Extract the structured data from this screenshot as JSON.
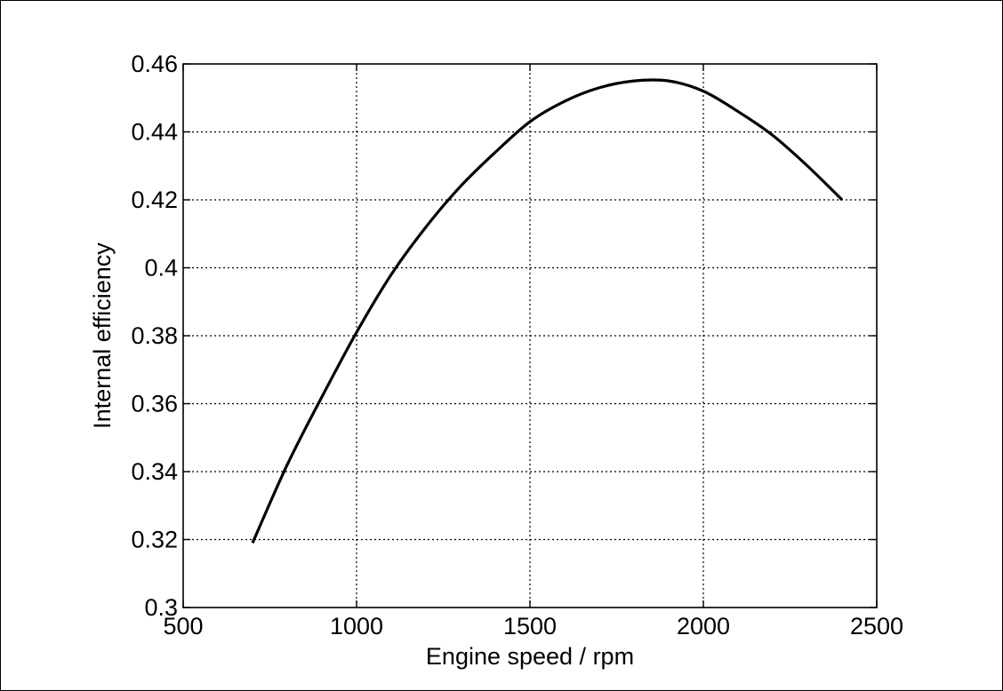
{
  "chart_data": {
    "type": "line",
    "title": "",
    "xlabel": "Engine speed / rpm",
    "ylabel": "Internal efficiency",
    "xlim": [
      500,
      2500
    ],
    "ylim": [
      0.3,
      0.46
    ],
    "xticks": [
      500,
      1000,
      1500,
      2000,
      2500
    ],
    "xtick_labels": [
      "500",
      "1000",
      "1500",
      "2000",
      "2500"
    ],
    "yticks": [
      0.3,
      0.32,
      0.34,
      0.36,
      0.38,
      0.4,
      0.42,
      0.44,
      0.46
    ],
    "ytick_labels": [
      "0.3",
      "0.32",
      "0.34",
      "0.36",
      "0.38",
      "0.4",
      "0.42",
      "0.44",
      "0.46"
    ],
    "grid": true,
    "line_color": "#000000",
    "series": [
      {
        "x": [
          700,
          800,
          900,
          1000,
          1100,
          1200,
          1300,
          1400,
          1500,
          1600,
          1700,
          1800,
          1900,
          2000,
          2100,
          2200,
          2300,
          2400
        ],
        "y": [
          0.319,
          0.342,
          0.362,
          0.381,
          0.398,
          0.412,
          0.424,
          0.434,
          0.443,
          0.449,
          0.453,
          0.455,
          0.455,
          0.452,
          0.446,
          0.439,
          0.43,
          0.42
        ]
      }
    ]
  }
}
